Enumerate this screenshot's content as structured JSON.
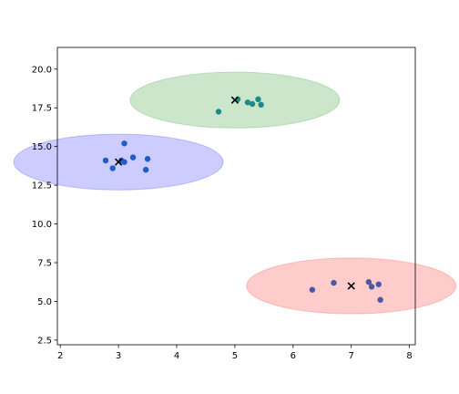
{
  "chart_data": {
    "type": "scatter",
    "title": "",
    "xlabel": "",
    "ylabel": "",
    "xlim": [
      1.95,
      8.1
    ],
    "ylim": [
      2.2,
      21.4
    ],
    "grid": false,
    "legend": "none",
    "x_ticks": [
      2,
      3,
      4,
      5,
      6,
      7,
      8
    ],
    "x_tick_labels": [
      "2",
      "3",
      "4",
      "5",
      "6",
      "7",
      "8"
    ],
    "y_ticks": [
      2.5,
      5.0,
      7.5,
      10.0,
      12.5,
      15.0,
      17.5,
      20.0
    ],
    "y_tick_labels": [
      "2.5",
      "5.0",
      "7.5",
      "10.0",
      "12.5",
      "15.0",
      "17.5",
      "20.0"
    ],
    "clusters": [
      {
        "center": [
          3.0,
          14.0
        ],
        "radius": 1.8,
        "circle_color": "#0000ff",
        "point_color": "#1f5cc8",
        "points": [
          [
            2.78,
            14.1
          ],
          [
            2.9,
            13.6
          ],
          [
            3.1,
            15.2
          ],
          [
            3.1,
            14.0
          ],
          [
            3.25,
            14.3
          ],
          [
            3.5,
            14.2
          ],
          [
            3.47,
            13.5
          ],
          [
            3.05,
            14.1
          ]
        ]
      },
      {
        "center": [
          5.0,
          18.0
        ],
        "radius": 1.8,
        "circle_color": "#008000",
        "point_color": "#1f8a8a",
        "points": [
          [
            4.72,
            17.25
          ],
          [
            5.05,
            18.05
          ],
          [
            5.22,
            17.85
          ],
          [
            5.3,
            17.75
          ],
          [
            5.4,
            18.05
          ],
          [
            5.45,
            17.7
          ]
        ]
      },
      {
        "center": [
          7.0,
          6.0
        ],
        "radius": 1.8,
        "circle_color": "#ff0000",
        "point_color": "#4a5aa0",
        "points": [
          [
            6.33,
            5.75
          ],
          [
            6.7,
            6.2
          ],
          [
            7.3,
            6.25
          ],
          [
            7.35,
            5.95
          ],
          [
            7.47,
            6.1
          ],
          [
            7.5,
            5.1
          ]
        ]
      }
    ],
    "center_marker": "x",
    "center_marker_color": "#000000"
  }
}
